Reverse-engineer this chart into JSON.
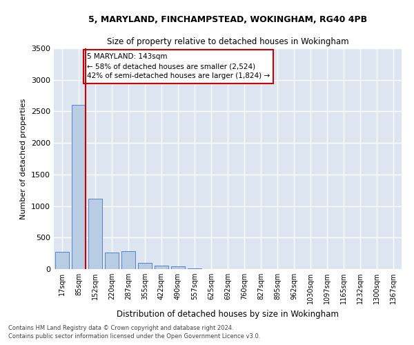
{
  "title1": "5, MARYLAND, FINCHAMPSTEAD, WOKINGHAM, RG40 4PB",
  "title2": "Size of property relative to detached houses in Wokingham",
  "xlabel": "Distribution of detached houses by size in Wokingham",
  "ylabel": "Number of detached properties",
  "categories": [
    "17sqm",
    "85sqm",
    "152sqm",
    "220sqm",
    "287sqm",
    "355sqm",
    "422sqm",
    "490sqm",
    "557sqm",
    "625sqm",
    "692sqm",
    "760sqm",
    "827sqm",
    "895sqm",
    "962sqm",
    "1030sqm",
    "1097sqm",
    "1165sqm",
    "1232sqm",
    "1300sqm",
    "1367sqm"
  ],
  "values": [
    270,
    2600,
    1120,
    265,
    285,
    100,
    60,
    45,
    8,
    4,
    2,
    1,
    1,
    0,
    0,
    0,
    0,
    0,
    0,
    0,
    0
  ],
  "bar_color": "#b8cce4",
  "bar_edge_color": "#4472c4",
  "vline_color": "#cc0000",
  "annotation_text": "5 MARYLAND: 143sqm\n← 58% of detached houses are smaller (2,524)\n42% of semi-detached houses are larger (1,824) →",
  "annotation_box_color": "#ffffff",
  "annotation_border_color": "#cc0000",
  "ylim": [
    0,
    3500
  ],
  "yticks": [
    0,
    500,
    1000,
    1500,
    2000,
    2500,
    3000,
    3500
  ],
  "background_color": "#dde5f0",
  "grid_color": "#ffffff",
  "footnote1": "Contains HM Land Registry data © Crown copyright and database right 2024.",
  "footnote2": "Contains public sector information licensed under the Open Government Licence v3.0."
}
